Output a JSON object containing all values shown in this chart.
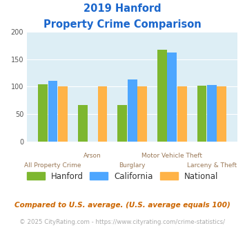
{
  "title_line1": "2019 Hanford",
  "title_line2": "Property Crime Comparison",
  "categories": [
    "All Property Crime",
    "Arson",
    "Burglary",
    "Motor Vehicle Theft",
    "Larceny & Theft"
  ],
  "hanford": [
    104,
    67,
    67,
    168,
    102
  ],
  "california": [
    110,
    0,
    113,
    163,
    103
  ],
  "national": [
    100,
    100,
    100,
    100,
    100
  ],
  "color_hanford": "#7db72f",
  "color_california": "#4da6ff",
  "color_national": "#ffb347",
  "ylim": [
    0,
    200
  ],
  "yticks": [
    0,
    50,
    100,
    150,
    200
  ],
  "bg_color": "#ddeef5",
  "title_color": "#1a66cc",
  "xlabel_color": "#997755",
  "legend_labels": [
    "Hanford",
    "California",
    "National"
  ],
  "footnote1": "Compared to U.S. average. (U.S. average equals 100)",
  "footnote2": "© 2025 CityRating.com - https://www.cityrating.com/crime-statistics/",
  "footnote1_color": "#cc6600",
  "footnote2_color": "#aaaaaa"
}
